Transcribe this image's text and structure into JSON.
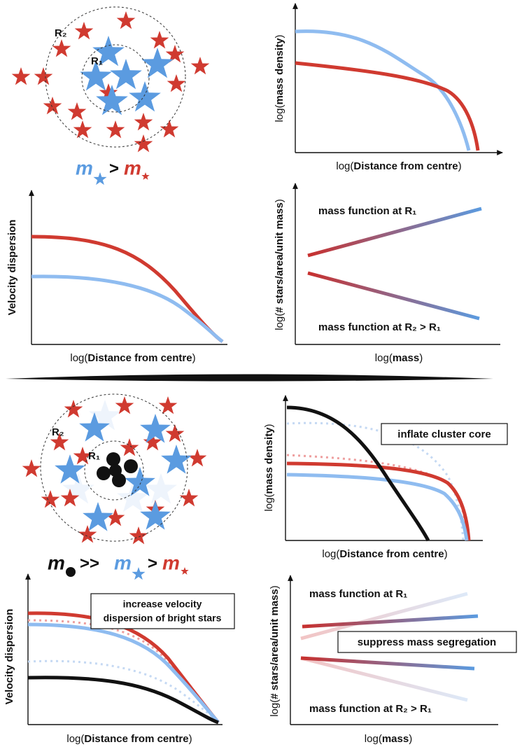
{
  "top": {
    "cluster": {
      "r2": "R₂",
      "r1": "R₁"
    },
    "legend": {
      "m_blue": "m",
      "op": ">",
      "m_red": "m"
    },
    "density": {
      "ylabel": {
        "pre": "log(",
        "bold": "mass density",
        "post": ")"
      },
      "xlabel": {
        "pre": "log(",
        "bold": "Distance from centre",
        "post": ")"
      }
    },
    "dispersion": {
      "ylabel": "Velocity dispersion",
      "xlabel": {
        "pre": "log(",
        "bold": "Distance from centre",
        "post": ")"
      }
    },
    "mass_function": {
      "ylabel": {
        "pre": "log(",
        "bold": "# stars/area/unit mass",
        "post": ")"
      },
      "xlabel": {
        "pre": "log(",
        "bold": "mass",
        "post": ")"
      },
      "r1_label": "mass function at R₁",
      "r2_label": "mass function at R₂ > R₁"
    }
  },
  "bottom": {
    "cluster": {
      "r2": "R₂",
      "r1": "R₁"
    },
    "legend": {
      "m_black": "m",
      "op1": ">>",
      "m_blue": "m",
      "op2": ">",
      "m_red": "m"
    },
    "density": {
      "ylabel": {
        "pre": "log(",
        "bold": "mass density",
        "post": ")"
      },
      "xlabel": {
        "pre": "log(",
        "bold": "Distance from centre",
        "post": ")"
      },
      "annotation": "inflate cluster core"
    },
    "dispersion": {
      "ylabel": "Velocity dispersion",
      "xlabel": {
        "pre": "log(",
        "bold": "Distance from centre",
        "post": ")"
      },
      "annotation": [
        "increase velocity",
        "dispersion of bright stars"
      ]
    },
    "mass_function": {
      "ylabel": {
        "pre": "log(",
        "bold": "# stars/area/unit mass",
        "post": ")"
      },
      "xlabel": {
        "pre": "log(",
        "bold": "mass",
        "post": ")"
      },
      "r1_label": "mass function at R₁",
      "r2_label": "mass function at R₂ > R₁",
      "annotation": "suppress mass segregation"
    }
  }
}
